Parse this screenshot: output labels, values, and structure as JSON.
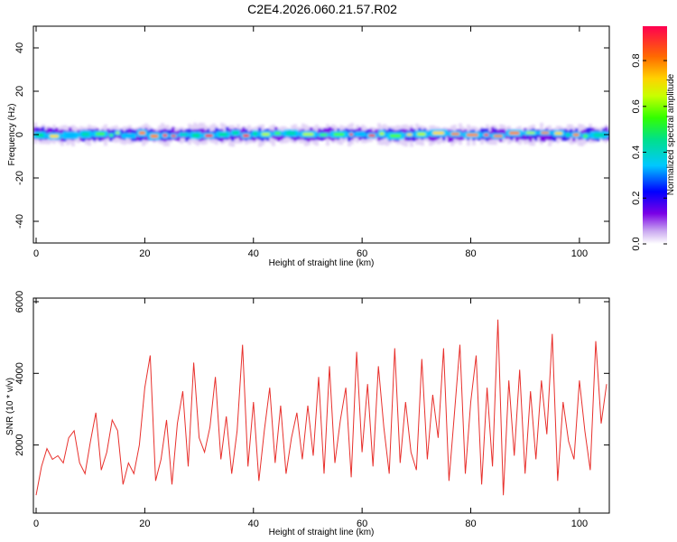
{
  "title": "C2E4.2026.060.21.57.R02",
  "chart_data": [
    {
      "type": "heatmap",
      "xlabel": "Height of straight line (km)",
      "ylabel": "Frequency (Hz)",
      "xlim": [
        -0.5,
        105.5
      ],
      "ylim": [
        -50,
        50
      ],
      "xticks": [
        0,
        20,
        40,
        60,
        80,
        100
      ],
      "yticks": [
        -40,
        -20,
        0,
        20,
        40
      ],
      "band_center_hz": 0,
      "band_halfwidth_hz": 3,
      "colorbar": {
        "label": "Normalized spectral amplitude",
        "range": [
          0,
          0.95
        ],
        "ticks": [
          0.0,
          0.2,
          0.4,
          0.6,
          0.8
        ]
      }
    },
    {
      "type": "line",
      "xlabel": "Height of straight line (km)",
      "ylabel": "SNR (10 * v/v)",
      "xlim": [
        -0.5,
        105.5
      ],
      "ylim": [
        100,
        6100
      ],
      "xticks": [
        0,
        20,
        40,
        60,
        80,
        100
      ],
      "yticks": [
        2000,
        4000,
        6000
      ],
      "color": "#e8302c",
      "x": [
        0,
        1,
        2,
        3,
        4,
        5,
        6,
        7,
        8,
        9,
        10,
        11,
        12,
        13,
        14,
        15,
        16,
        17,
        18,
        19,
        20,
        21,
        22,
        23,
        24,
        25,
        26,
        27,
        28,
        29,
        30,
        31,
        32,
        33,
        34,
        35,
        36,
        37,
        38,
        39,
        40,
        41,
        42,
        43,
        44,
        45,
        46,
        47,
        48,
        49,
        50,
        51,
        52,
        53,
        54,
        55,
        56,
        57,
        58,
        59,
        60,
        61,
        62,
        63,
        64,
        65,
        66,
        67,
        68,
        69,
        70,
        71,
        72,
        73,
        74,
        75,
        76,
        77,
        78,
        79,
        80,
        81,
        82,
        83,
        84,
        85,
        86,
        87,
        88,
        89,
        90,
        91,
        92,
        93,
        94,
        95,
        96,
        97,
        98,
        99,
        100,
        101,
        102,
        103,
        104,
        105
      ],
      "values": [
        600,
        1400,
        1900,
        1600,
        1700,
        1500,
        2200,
        2400,
        1500,
        1200,
        2100,
        2900,
        1300,
        1800,
        2700,
        2400,
        900,
        1500,
        1200,
        2000,
        3600,
        4500,
        1000,
        1600,
        2700,
        900,
        2600,
        3500,
        1400,
        4300,
        2200,
        1800,
        2500,
        3900,
        1600,
        2800,
        1200,
        2400,
        4800,
        1400,
        3200,
        1000,
        2400,
        3600,
        1500,
        3100,
        1200,
        2200,
        2900,
        1600,
        3100,
        1700,
        3900,
        1200,
        4200,
        1500,
        2700,
        3600,
        1100,
        4600,
        1800,
        3700,
        1400,
        4200,
        2500,
        1200,
        4700,
        1500,
        3200,
        1800,
        1300,
        4400,
        1600,
        3400,
        2200,
        4700,
        1000,
        2900,
        4800,
        1200,
        3200,
        4500,
        900,
        3600,
        1400,
        5500,
        600,
        3800,
        1700,
        4100,
        1200,
        3500,
        1600,
        3800,
        2300,
        5100,
        1000,
        3200,
        2100,
        1600,
        3800,
        2400,
        1300,
        4900,
        2600,
        3700
      ]
    }
  ]
}
